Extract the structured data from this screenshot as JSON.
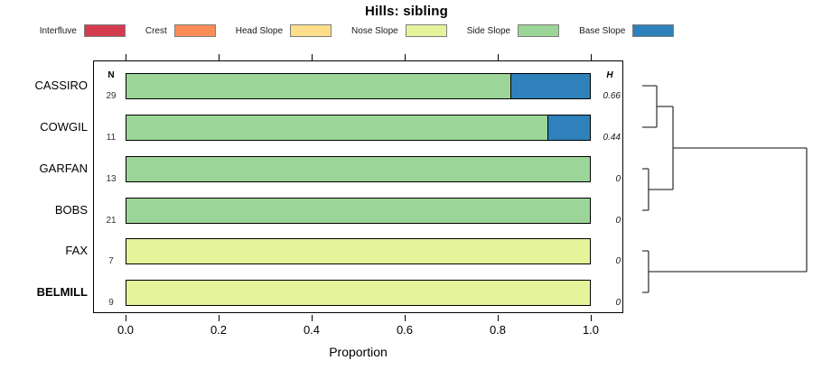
{
  "title": "Hills: sibling",
  "legend": {
    "items": [
      {
        "label": "Interfluve",
        "color": "#d23c4e"
      },
      {
        "label": "Crest",
        "color": "#fc8d59"
      },
      {
        "label": "Head Slope",
        "color": "#fdde8a"
      },
      {
        "label": "Nose Slope",
        "color": "#e5f49b"
      },
      {
        "label": "Side Slope",
        "color": "#9cd598"
      },
      {
        "label": "Base Slope",
        "color": "#2e81ba"
      }
    ]
  },
  "chart_data": {
    "type": "bar",
    "subtype": "horizontal-stacked-proportion",
    "title": "Hills: sibling",
    "xlabel": "Proportion",
    "xlim": [
      0,
      1
    ],
    "xticks": [
      "0.0",
      "0.2",
      "0.4",
      "0.6",
      "0.8",
      "1.0"
    ],
    "grid": false,
    "legend_position": "top",
    "n_header": "N",
    "h_header": "H",
    "categories": [
      "Interfluve",
      "Crest",
      "Head Slope",
      "Nose Slope",
      "Side Slope",
      "Base Slope"
    ],
    "rows": [
      {
        "label": "CASSIRO",
        "n": "29",
        "h": "0.66",
        "bold": false,
        "segments": [
          {
            "category": "Side Slope",
            "value": 0.83
          },
          {
            "category": "Base Slope",
            "value": 0.17
          }
        ]
      },
      {
        "label": "COWGIL",
        "n": "11",
        "h": "0.44",
        "bold": false,
        "segments": [
          {
            "category": "Side Slope",
            "value": 0.91
          },
          {
            "category": "Base Slope",
            "value": 0.09
          }
        ]
      },
      {
        "label": "GARFAN",
        "n": "13",
        "h": "0",
        "bold": false,
        "segments": [
          {
            "category": "Side Slope",
            "value": 1.0
          }
        ]
      },
      {
        "label": "BOBS",
        "n": "21",
        "h": "0",
        "bold": false,
        "segments": [
          {
            "category": "Side Slope",
            "value": 1.0
          }
        ]
      },
      {
        "label": "FAX",
        "n": "7",
        "h": "0",
        "bold": false,
        "segments": [
          {
            "category": "Nose Slope",
            "value": 1.0
          }
        ]
      },
      {
        "label": "BELMILL",
        "n": "9",
        "h": "0",
        "bold": true,
        "segments": [
          {
            "category": "Nose Slope",
            "value": 1.0
          }
        ]
      }
    ],
    "dendrogram": {
      "leaves": [
        "CASSIRO",
        "COWGIL",
        "GARFAN",
        "BOBS",
        "FAX",
        "BELMILL"
      ],
      "merges": [
        [
          0,
          1,
          0.088
        ],
        [
          2,
          3,
          0.038
        ],
        [
          6,
          7,
          0.187
        ],
        [
          4,
          5,
          0.038
        ],
        [
          8,
          9,
          1.0
        ]
      ]
    }
  }
}
